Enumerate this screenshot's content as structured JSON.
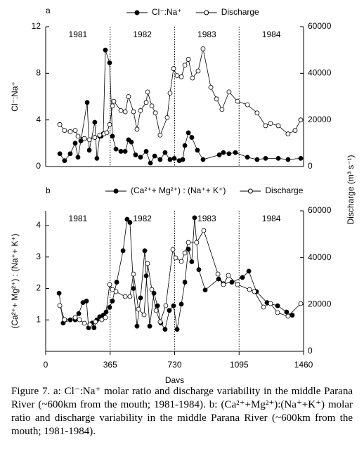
{
  "chart_data": [
    {
      "type": "line",
      "panel_label": "a",
      "year_labels": [
        "1981",
        "1982",
        "1983",
        "1984"
      ],
      "xlim": [
        0,
        1460
      ],
      "vlines": [
        365,
        730,
        1095
      ],
      "ylim": [
        0,
        12
      ],
      "yticks": [
        0,
        4,
        8,
        12
      ],
      "y2lim": [
        0,
        60000
      ],
      "y2ticks": [
        0,
        20000,
        40000,
        60000
      ],
      "y_label": "Cl⁻:Na⁺",
      "y2_label": "Discharge (m³ s⁻¹)",
      "series": [
        {
          "name": "Cl⁻:Na⁺",
          "color": "#000000",
          "marker": "filled",
          "x": [
            80,
            107,
            139,
            167,
            183,
            199,
            235,
            247,
            278,
            290,
            306,
            314,
            326,
            338,
            362,
            378,
            398,
            426,
            450,
            469,
            485,
            509,
            537,
            569,
            593,
            617,
            648,
            676,
            704,
            728,
            756,
            776,
            788,
            808,
            827,
            859,
            891,
            983,
            1006,
            1038,
            1074,
            1142,
            1197,
            1245,
            1317,
            1372,
            1444
          ],
          "values": [
            1.1,
            0.5,
            1.1,
            2.0,
            0.8,
            2.2,
            5.5,
            1.4,
            3.8,
            0.7,
            2.6,
            2.6,
            2.8,
            10.0,
            8.9,
            2.6,
            1.5,
            1.3,
            1.3,
            2.3,
            2.1,
            1.0,
            0.8,
            1.3,
            0.3,
            0.9,
            0.6,
            1.2,
            0.6,
            0.7,
            0.5,
            0.6,
            1.8,
            2.9,
            2.5,
            1.4,
            0.6,
            1.0,
            1.2,
            1.1,
            1.2,
            0.8,
            0.6,
            0.7,
            0.7,
            0.6,
            0.7
          ]
        },
        {
          "name": "Discharge",
          "color": "#000000",
          "marker": "open",
          "axis": "y2",
          "x": [
            80,
            107,
            139,
            167,
            183,
            219,
            247,
            278,
            306,
            330,
            346,
            362,
            378,
            386,
            426,
            450,
            469,
            497,
            517,
            537,
            569,
            577,
            601,
            621,
            648,
            688,
            704,
            724,
            744,
            768,
            788,
            808,
            831,
            863,
            891,
            935,
            967,
            998,
            1038,
            1086,
            1142,
            1197,
            1245,
            1273,
            1317,
            1372,
            1412,
            1444
          ],
          "values": [
            18000,
            15500,
            15000,
            15500,
            13000,
            12000,
            11500,
            12500,
            13500,
            14000,
            14500,
            18000,
            26000,
            28000,
            24000,
            23500,
            30000,
            23500,
            16000,
            24000,
            27500,
            32000,
            26000,
            23000,
            13500,
            21000,
            31500,
            42000,
            39000,
            38500,
            43500,
            46000,
            38000,
            41000,
            50500,
            34000,
            29000,
            24500,
            32000,
            28000,
            26500,
            23000,
            17500,
            18500,
            17500,
            14000,
            15500,
            20000
          ]
        }
      ]
    },
    {
      "type": "line",
      "panel_label": "b",
      "year_labels": [
        "1981",
        "1982",
        "1983",
        "1984"
      ],
      "xlim": [
        0,
        1460
      ],
      "xticks": [
        0,
        365,
        730,
        1095,
        1460
      ],
      "vlines": [
        365,
        730,
        1095
      ],
      "x_label": "Days",
      "ylim": [
        0,
        4.47
      ],
      "yticks": [
        1,
        2,
        3,
        4
      ],
      "y2lim": [
        0,
        60000
      ],
      "y2ticks": [
        0,
        20000,
        40000,
        60000
      ],
      "y_label": "(Ca²⁺+ Mg²⁺) : (Na⁺+ K⁺)",
      "series": [
        {
          "name": "(Ca²⁺+ Mg²⁺) : (Na⁺+ K⁺)",
          "color": "#000000",
          "marker": "filled",
          "x": [
            76,
            99,
            139,
            167,
            187,
            211,
            231,
            243,
            263,
            274,
            290,
            306,
            326,
            342,
            362,
            378,
            402,
            438,
            461,
            477,
            497,
            517,
            537,
            561,
            569,
            589,
            613,
            633,
            652,
            676,
            700,
            724,
            744,
            768,
            788,
            808,
            827,
            843,
            867,
            903,
            979,
            1006,
            1054,
            1114,
            1150,
            1193,
            1253,
            1313,
            1364,
            1396
          ],
          "values": [
            1.85,
            0.9,
            1.0,
            1.0,
            1.2,
            1.55,
            1.6,
            0.75,
            0.9,
            0.75,
            1.0,
            1.1,
            1.15,
            1.25,
            1.4,
            1.6,
            2.2,
            3.2,
            4.2,
            4.1,
            2.0,
            0.8,
            1.7,
            3.2,
            2.4,
            0.8,
            1.85,
            1.45,
            0.9,
            0.7,
            1.3,
            1.45,
            0.7,
            1.5,
            2.2,
            3.25,
            2.85,
            4.25,
            2.6,
            1.95,
            2.3,
            2.15,
            2.2,
            2.35,
            2.55,
            1.9,
            1.55,
            1.45,
            1.25,
            1.15
          ]
        },
        {
          "name": "Discharge",
          "color": "#000000",
          "marker": "open",
          "axis": "y2",
          "x": [
            80,
            107,
            167,
            191,
            219,
            251,
            282,
            318,
            338,
            362,
            378,
            398,
            450,
            477,
            497,
            525,
            557,
            577,
            601,
            625,
            648,
            680,
            720,
            736,
            768,
            788,
            808,
            855,
            895,
            975,
            1006,
            1034,
            1086,
            1154,
            1181,
            1233,
            1273,
            1313,
            1372,
            1444
          ],
          "values": [
            19500,
            13500,
            14400,
            13500,
            12000,
            11400,
            12600,
            13500,
            14400,
            28500,
            26400,
            25500,
            23400,
            23400,
            33000,
            18000,
            15600,
            37500,
            26400,
            17400,
            12600,
            19500,
            43500,
            39900,
            38400,
            42000,
            46500,
            46500,
            51600,
            33000,
            28500,
            32400,
            28500,
            26400,
            25500,
            18900,
            20400,
            16500,
            15000,
            20400
          ]
        }
      ]
    }
  ],
  "caption": "Figure 7. a: Cl⁻:Na⁺ molar ratio and discharge variability in the middle Parana River (~600km from the mouth; 1981-1984). b: (Ca²⁺+Mg²⁺):(Na⁺+K⁺) molar ratio and discharge variability in the middle Parana River (~600km from the mouth; 1981-1984)."
}
